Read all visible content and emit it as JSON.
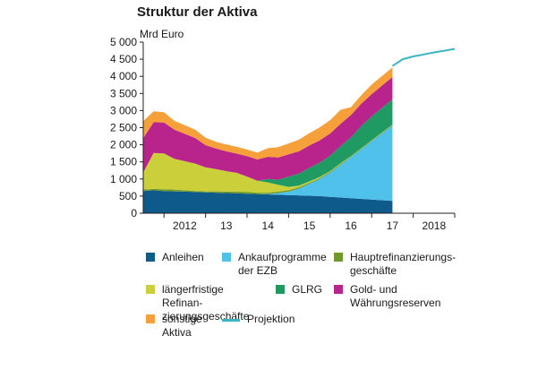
{
  "title": "Struktur der Aktiva",
  "unit": "Mrd Euro",
  "chart_data": {
    "type": "area",
    "stacked": true,
    "ylim": [
      0,
      5000
    ],
    "y_ticks": [
      "0",
      "500",
      "1 000",
      "1 500",
      "2 000",
      "2 500",
      "3 000",
      "3 500",
      "4 000",
      "4 500",
      "5 000"
    ],
    "y_tick_values": [
      0,
      500,
      1000,
      1500,
      2000,
      2500,
      3000,
      3500,
      4000,
      4500,
      5000
    ],
    "x_ticks": [
      "2012",
      "13",
      "14",
      "15",
      "16",
      "17",
      "2018"
    ],
    "xlim": [
      2011.5,
      2019
    ],
    "x": [
      2011.5,
      2011.75,
      2012.0,
      2012.25,
      2012.5,
      2012.75,
      2013.0,
      2013.25,
      2013.5,
      2013.75,
      2014.0,
      2014.25,
      2014.5,
      2014.75,
      2015.0,
      2015.25,
      2015.5,
      2015.75,
      2016.0,
      2016.25,
      2016.5,
      2016.75,
      2017.0,
      2017.25,
      2017.5
    ],
    "series": [
      {
        "name": "Anleihen",
        "color": "#0e5a8a",
        "values": [
          650,
          670,
          650,
          640,
          630,
          620,
          610,
          600,
          590,
          580,
          570,
          560,
          550,
          540,
          530,
          520,
          510,
          500,
          480,
          460,
          440,
          420,
          400,
          380,
          360
        ]
      },
      {
        "name": "Ankaufprogramme der EZB",
        "color": "#4fc1ea",
        "values": [
          0,
          0,
          0,
          0,
          0,
          0,
          0,
          0,
          0,
          0,
          0,
          0,
          10,
          50,
          100,
          200,
          350,
          500,
          700,
          950,
          1200,
          1450,
          1700,
          1950,
          2200
        ]
      },
      {
        "name": "Hauptrefinanzierungsgeschäfte",
        "color": "#6f9a2a",
        "values": [
          40,
          40,
          50,
          50,
          40,
          30,
          30,
          40,
          40,
          50,
          50,
          40,
          40,
          40,
          40,
          40,
          30,
          30,
          30,
          30,
          20,
          20,
          20,
          20,
          20
        ]
      },
      {
        "name": "längerfristige Refinanzierungsgeschäfte",
        "color": "#cbcf3a",
        "values": [
          500,
          1050,
          1050,
          900,
          850,
          800,
          700,
          650,
          600,
          550,
          450,
          350,
          300,
          200,
          100,
          50,
          40,
          30,
          20,
          20,
          10,
          10,
          10,
          10,
          10
        ]
      },
      {
        "name": "GLRG",
        "color": "#1f9a63",
        "values": [
          0,
          0,
          0,
          0,
          0,
          0,
          0,
          0,
          0,
          0,
          0,
          0,
          100,
          150,
          300,
          350,
          400,
          420,
          450,
          500,
          550,
          650,
          700,
          720,
          740
        ]
      },
      {
        "name": "Gold- und Währungsreserven",
        "color": "#b8238c",
        "values": [
          1000,
          900,
          900,
          850,
          800,
          750,
          650,
          600,
          580,
          560,
          600,
          620,
          650,
          650,
          650,
          650,
          650,
          650,
          650,
          650,
          650,
          650,
          650,
          650,
          650
        ]
      },
      {
        "name": "sonstige Aktiva",
        "color": "#f6a03b",
        "values": [
          500,
          320,
          300,
          260,
          250,
          240,
          220,
          200,
          200,
          200,
          190,
          200,
          250,
          300,
          320,
          340,
          360,
          380,
          390,
          410,
          230,
          250,
          280,
          280,
          280
        ]
      },
      {
        "name": "Projektion",
        "color": "#3cb5c2",
        "kind": "line",
        "x": [
          2017.5,
          2017.75,
          2018.0,
          2018.25,
          2018.5,
          2018.75,
          2019.0
        ],
        "values": [
          4300,
          4500,
          4580,
          4640,
          4700,
          4750,
          4800
        ]
      }
    ]
  },
  "legend": [
    {
      "label": "Anleihen",
      "color": "#0e5a8a",
      "kind": "box"
    },
    {
      "label": "Ankaufprogramme\nder EZB",
      "color": "#4fc1ea",
      "kind": "box"
    },
    {
      "label": "Hauptrefinanzierungs-\ngeschäfte",
      "color": "#6f9a2a",
      "kind": "box"
    },
    {
      "label": "längerfristige Refinan-\nzierungsgeschäfte",
      "color": "#cbcf3a",
      "kind": "box"
    },
    {
      "label": "GLRG",
      "color": "#1f9a63",
      "kind": "box"
    },
    {
      "label": "Gold- und\nWährungsreserven",
      "color": "#b8238c",
      "kind": "box"
    },
    {
      "label": "sonstige Aktiva",
      "color": "#f6a03b",
      "kind": "box"
    },
    {
      "label": "Projektion",
      "color": "#3cb5c2",
      "kind": "line"
    }
  ]
}
